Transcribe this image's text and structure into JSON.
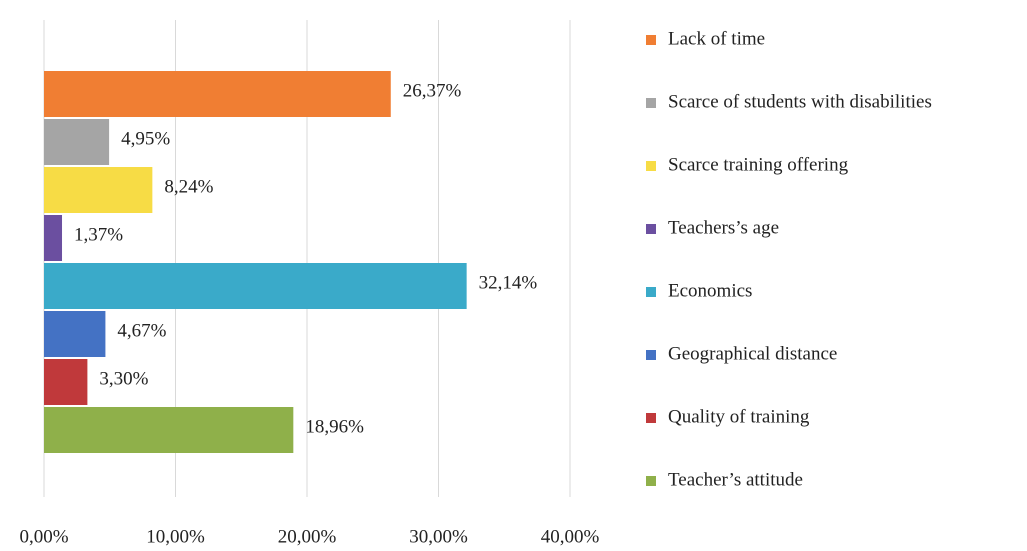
{
  "chart_data": {
    "type": "bar",
    "orientation": "horizontal",
    "categories": [
      "Lack of time",
      "Scarce of students with disabilities",
      "Scarce training offering",
      "Teachers’s age",
      "Economics",
      "Geographical distance",
      "Quality of training",
      "Teacher’s attitude"
    ],
    "values": [
      26.37,
      4.95,
      8.24,
      1.37,
      32.14,
      4.67,
      3.3,
      18.96
    ],
    "value_labels": [
      "26,37%",
      "4,95%",
      "8,24%",
      "1,37%",
      "32,14%",
      "4,67%",
      "3,30%",
      "18,96%"
    ],
    "colors": [
      "#f07e33",
      "#a5a5a5",
      "#f7dc45",
      "#6b4fa0",
      "#3aaac9",
      "#4472c4",
      "#c0393b",
      "#8fb04a"
    ],
    "xlim": [
      0,
      40
    ],
    "xticks": [
      {
        "value": 0,
        "label": "0,00%"
      },
      {
        "value": 10,
        "label": "10,00%"
      },
      {
        "value": 20,
        "label": "20,00%"
      },
      {
        "value": 30,
        "label": "30,00%"
      },
      {
        "value": 40,
        "label": "40,00%"
      }
    ],
    "grid": true,
    "legend": "right"
  }
}
